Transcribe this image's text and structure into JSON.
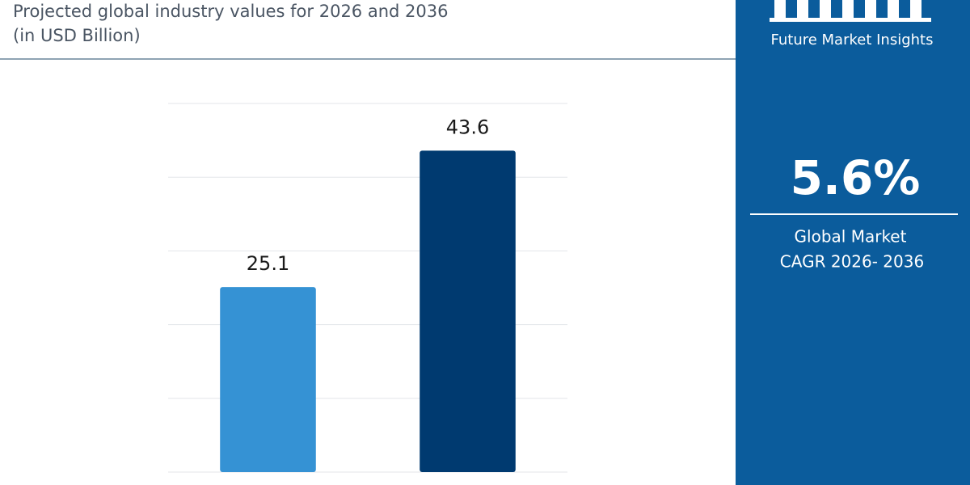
{
  "chart_data": {
    "type": "bar",
    "title": "Projected global industry values for 2026 and 2036",
    "subtitle": "(in USD Billion)",
    "categories": [
      null,
      null
    ],
    "values": [
      25.1,
      43.6
    ],
    "colors": [
      "#3592d4",
      "#003a70"
    ],
    "ylim": [
      0,
      50
    ],
    "yticks": [
      0,
      10,
      20,
      30,
      40,
      50
    ],
    "grid": true
  },
  "sidebar": {
    "brand": "Future Market Insights",
    "headline": "5.6%",
    "caption_lines": [
      "Global Market",
      "CAGR 2026- 2036"
    ]
  }
}
